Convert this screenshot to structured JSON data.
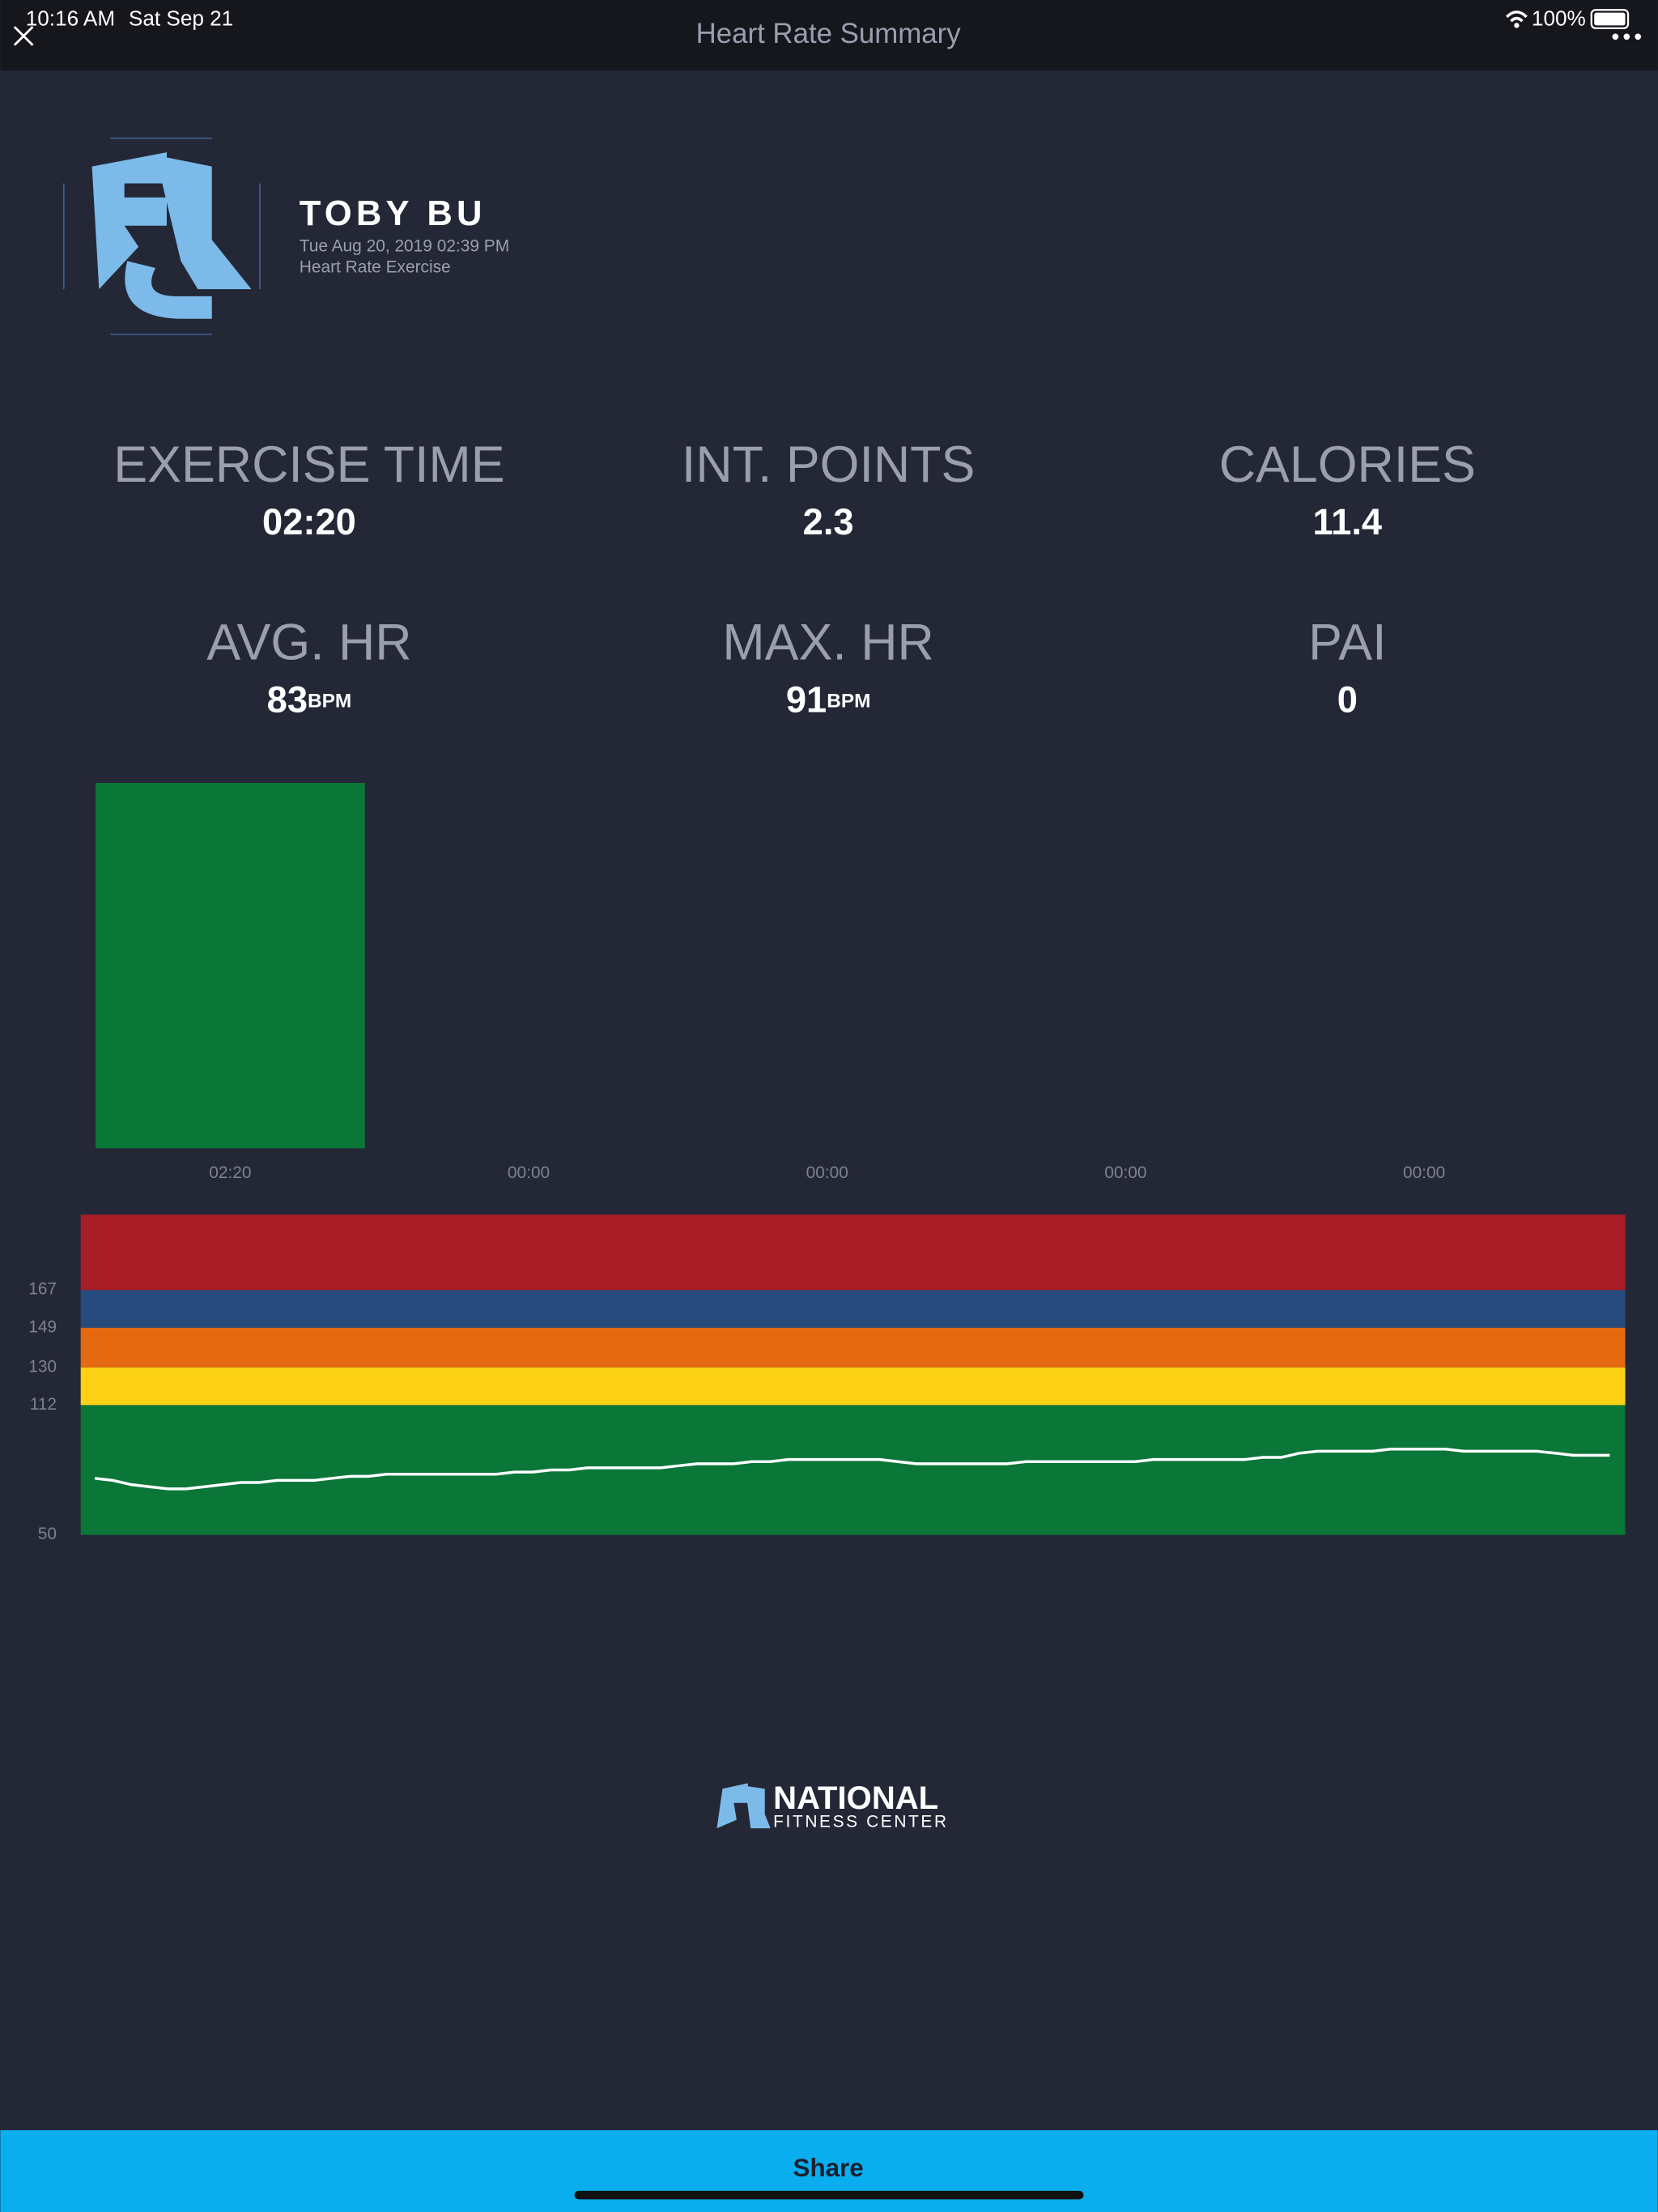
{
  "status_bar": {
    "time": "10:16 AM",
    "date": "Sat Sep 21",
    "battery": "100%"
  },
  "header": {
    "title": "Heart Rate Summary"
  },
  "profile": {
    "name": "TOBY BU",
    "datetime": "Tue Aug 20, 2019 02:39 PM",
    "activity": "Heart Rate Exercise"
  },
  "stats": [
    {
      "label": "EXERCISE TIME",
      "value": "02:20"
    },
    {
      "label": "INT. POINTS",
      "value": "2.3"
    },
    {
      "label": "CALORIES",
      "value": "11.4"
    },
    {
      "label": "AVG. HR",
      "value": "83",
      "unit": "BPM"
    },
    {
      "label": "MAX. HR",
      "value": "91",
      "unit": "BPM"
    },
    {
      "label": "PAI",
      "value": "0"
    }
  ],
  "chart_data": [
    {
      "type": "bar",
      "values": [
        140,
        0,
        0,
        0,
        0
      ],
      "value_labels": [
        "02:20",
        "00:00",
        "00:00",
        "00:00",
        "00:00"
      ],
      "color": "#0a7638",
      "ylim": [
        0,
        140
      ]
    },
    {
      "type": "line",
      "values": [
        77,
        76,
        74,
        73,
        72,
        72,
        73,
        74,
        75,
        75,
        76,
        76,
        76,
        77,
        78,
        78,
        79,
        79,
        79,
        79,
        79,
        79,
        79,
        80,
        80,
        81,
        81,
        82,
        82,
        82,
        82,
        82,
        83,
        84,
        84,
        84,
        85,
        85,
        86,
        86,
        86,
        86,
        86,
        86,
        85,
        84,
        84,
        84,
        84,
        84,
        84,
        85,
        85,
        85,
        85,
        85,
        85,
        85,
        86,
        86,
        86,
        86,
        86,
        86,
        87,
        87,
        89,
        90,
        90,
        90,
        90,
        91,
        91,
        91,
        91,
        90,
        90,
        90,
        90,
        90,
        89,
        88,
        88,
        88
      ],
      "color": "#ffffff",
      "ylim": [
        50,
        203
      ],
      "yticks": [
        50,
        112,
        130,
        149,
        167
      ],
      "zone_colors": [
        "#0a7638",
        "#fdd116",
        "#e56910",
        "#264b7c",
        "#a81d26"
      ]
    }
  ],
  "footer": {
    "brand": "NATIONAL",
    "brand_sub": "FITNESS CENTER",
    "button": "Share"
  }
}
